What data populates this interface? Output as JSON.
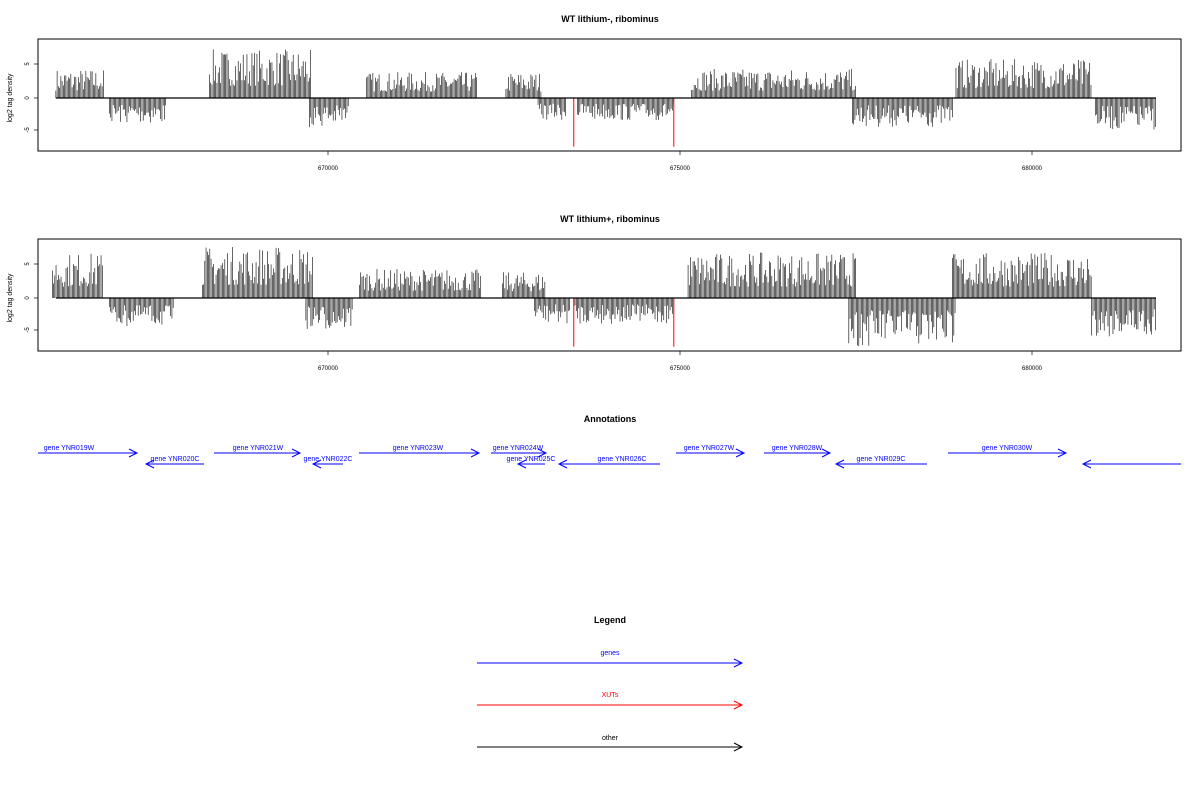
{
  "colors": {
    "gene": "#0000ff",
    "xut": "#ff0000",
    "other": "#000000"
  },
  "chart_data": [
    {
      "type": "bar",
      "title": "WT lithium-, ribominus",
      "ylabel": "log2 tag density",
      "xlim": [
        665800,
        681800
      ],
      "ylim": [
        -8,
        8.5
      ],
      "x_ticks": [
        "670000",
        "675000",
        "680000"
      ],
      "y_ticks": [
        "-5",
        "0",
        "5"
      ],
      "regions": [
        {
          "strand": "+",
          "start": 666050,
          "end": 666720,
          "max": 4.5
        },
        {
          "strand": "-",
          "start": 666800,
          "end": 667600,
          "max": -4
        },
        {
          "strand": "+",
          "start": 668200,
          "end": 669620,
          "max": 7.5
        },
        {
          "strand": "-",
          "start": 669600,
          "end": 670150,
          "max": -4.5
        },
        {
          "strand": "+",
          "start": 670400,
          "end": 671950,
          "max": 4
        },
        {
          "strand": "+",
          "start": 672350,
          "end": 672850,
          "max": 4
        },
        {
          "strand": "-",
          "start": 672800,
          "end": 673200,
          "max": -3.5
        },
        {
          "strand": "-",
          "start": 673350,
          "end": 674700,
          "max": -3.5
        },
        {
          "strand": "+",
          "start": 674950,
          "end": 677250,
          "max": 4.5
        },
        {
          "strand": "-",
          "start": 677200,
          "end": 678600,
          "max": -4.5
        },
        {
          "strand": "+",
          "start": 678650,
          "end": 680550,
          "max": 6
        },
        {
          "strand": "-",
          "start": 680600,
          "end": 681450,
          "max": -5
        }
      ],
      "xut_spikes": [
        {
          "x": 673300,
          "y": -7.5
        },
        {
          "x": 674700,
          "y": -7.5
        }
      ]
    },
    {
      "type": "bar",
      "title": "WT lithium+, ribominus",
      "ylabel": "log2 tag density",
      "xlim": [
        665800,
        681800
      ],
      "ylim": [
        -8,
        8.5
      ],
      "x_ticks": [
        "670000",
        "675000",
        "680000"
      ],
      "y_ticks": [
        "-5",
        "0",
        "5"
      ],
      "regions": [
        {
          "strand": "+",
          "start": 666000,
          "end": 666700,
          "max": 7
        },
        {
          "strand": "-",
          "start": 666800,
          "end": 667700,
          "max": -4.5
        },
        {
          "strand": "+",
          "start": 668100,
          "end": 669650,
          "max": 8
        },
        {
          "strand": "-",
          "start": 669550,
          "end": 670200,
          "max": -5
        },
        {
          "strand": "+",
          "start": 670300,
          "end": 672000,
          "max": 4.5
        },
        {
          "strand": "+",
          "start": 672300,
          "end": 672900,
          "max": 4
        },
        {
          "strand": "-",
          "start": 672750,
          "end": 673250,
          "max": -4
        },
        {
          "strand": "-",
          "start": 673300,
          "end": 674700,
          "max": -4
        },
        {
          "strand": "+",
          "start": 674900,
          "end": 677250,
          "max": 7
        },
        {
          "strand": "-",
          "start": 677150,
          "end": 678650,
          "max": -7.5
        },
        {
          "strand": "+",
          "start": 678600,
          "end": 680550,
          "max": 7
        },
        {
          "strand": "-",
          "start": 680550,
          "end": 681450,
          "max": -6
        }
      ],
      "xut_spikes": [
        {
          "x": 673300,
          "y": -7.5
        },
        {
          "x": 674700,
          "y": -7.5
        }
      ]
    }
  ],
  "annotations": {
    "title": "Annotations",
    "genes": [
      {
        "name": "gene YNR019W",
        "strand": "+",
        "row": 0
      },
      {
        "name": "gene YNR020C",
        "strand": "-",
        "row": 1
      },
      {
        "name": "gene YNR021W",
        "strand": "+",
        "row": 0
      },
      {
        "name": "gene YNR022C",
        "strand": "-",
        "row": 1
      },
      {
        "name": "gene YNR023W",
        "strand": "+",
        "row": 0
      },
      {
        "name": "gene YNR024W",
        "strand": "+",
        "row": 0
      },
      {
        "name": "gene YNR025C",
        "strand": "-",
        "row": 1
      },
      {
        "name": "gene YNR026C",
        "strand": "-",
        "row": 1
      },
      {
        "name": "gene YNR027W",
        "strand": "+",
        "row": 0
      },
      {
        "name": "gene YNR028W",
        "strand": "+",
        "row": 0
      },
      {
        "name": "gene YNR029C",
        "strand": "-",
        "row": 1
      },
      {
        "name": "gene YNR030W",
        "strand": "+",
        "row": 0
      },
      {
        "name": "",
        "strand": "-",
        "row": 1
      }
    ]
  },
  "legend": {
    "title": "Legend",
    "items": [
      {
        "label": "genes",
        "color": "#0000ff"
      },
      {
        "label": "XUTs",
        "color": "#ff0000"
      },
      {
        "label": "other",
        "color": "#000000"
      }
    ]
  }
}
